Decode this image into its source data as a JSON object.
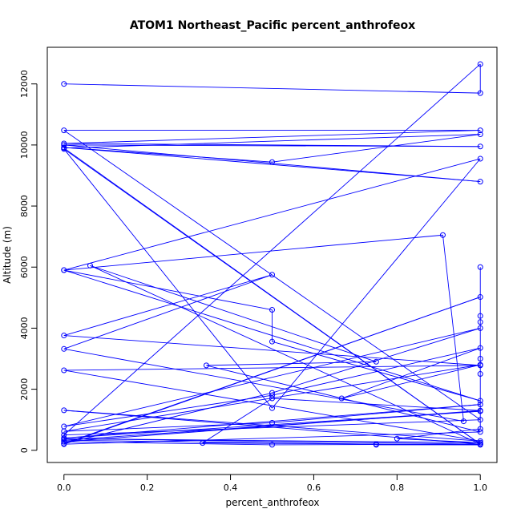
{
  "chart_data": {
    "type": "line",
    "title": "ATOM1 Northeast_Pacific percent_anthrofeox",
    "xlabel": "percent_anthrofeox",
    "ylabel": "Altitude (m)",
    "xlim": [
      -0.04,
      1.04
    ],
    "ylim": [
      -400,
      13200
    ],
    "xticks": [
      0.0,
      0.2,
      0.4,
      0.6,
      0.8,
      1.0
    ],
    "xtick_labels": [
      "0.0",
      "0.2",
      "0.4",
      "0.6",
      "0.8",
      "1.0"
    ],
    "yticks": [
      0,
      2000,
      4000,
      6000,
      8000,
      10000,
      12000
    ],
    "ytick_labels": [
      "0",
      "2000",
      "4000",
      "6000",
      "8000",
      "10000",
      "12000"
    ],
    "grid": false,
    "legend": "none",
    "series": [
      {
        "color": "#0000ff",
        "marker": "open-circle",
        "points": [
          [
            0.0,
            12000
          ],
          [
            1.0,
            11700
          ],
          [
            1.0,
            12650
          ],
          [
            0.0,
            500
          ],
          [
            1.0,
            1000
          ],
          [
            0.0,
            10480
          ],
          [
            1.0,
            10480
          ],
          [
            0.0,
            10050
          ],
          [
            1.0,
            9950
          ],
          [
            0.0,
            10000
          ],
          [
            1.0,
            8800
          ],
          [
            0.0,
            9920
          ],
          [
            0.5,
            9440
          ],
          [
            1.0,
            10350
          ],
          [
            0.0,
            9900
          ],
          [
            1.0,
            200
          ],
          [
            0.0,
            9870
          ],
          [
            0.5,
            1380
          ],
          [
            1.0,
            9550
          ],
          [
            0.0,
            5900
          ],
          [
            0.5,
            4600
          ],
          [
            0.5,
            3560
          ],
          [
            1.0,
            1620
          ],
          [
            0.0,
            5900
          ],
          [
            0.91,
            7050
          ],
          [
            0.96,
            950
          ],
          [
            0.0,
            3320
          ],
          [
            0.5,
            5750
          ],
          [
            0.0,
            3760
          ],
          [
            1.0,
            2780
          ],
          [
            0.0,
            2620
          ],
          [
            1.0,
            300
          ],
          [
            0.0,
            1310
          ],
          [
            1.0,
            200
          ],
          [
            0.063,
            6050
          ],
          [
            0.75,
            2900
          ],
          [
            0.342,
            2780
          ],
          [
            1.0,
            600
          ],
          [
            0.0,
            200
          ],
          [
            1.0,
            5020
          ],
          [
            0.0,
            220
          ],
          [
            0.5,
            1880
          ],
          [
            1.0,
            4000
          ],
          [
            0.0,
            780
          ],
          [
            0.5,
            1800
          ],
          [
            1.0,
            3350
          ],
          [
            0.667,
            1700
          ],
          [
            1.0,
            2800
          ],
          [
            0.0,
            620
          ],
          [
            0.5,
            900
          ],
          [
            1.0,
            1500
          ],
          [
            0.0,
            400
          ],
          [
            1.0,
            1280
          ],
          [
            0.0,
            330
          ],
          [
            0.75,
            200
          ],
          [
            0.75,
            180
          ],
          [
            1.0,
            180
          ],
          [
            0.333,
            240
          ],
          [
            0.5,
            1700
          ],
          [
            1.0,
            1300
          ],
          [
            0.0,
            280
          ],
          [
            0.5,
            180
          ],
          [
            1.0,
            200
          ],
          [
            0.0,
            380
          ],
          [
            1.0,
            250
          ],
          [
            0.8,
            380
          ],
          [
            1.0,
            700
          ],
          [
            1.0,
            2500
          ],
          [
            1.0,
            3000
          ],
          [
            1.0,
            4200
          ],
          [
            1.0,
            4400
          ],
          [
            1.0,
            6000
          ]
        ]
      }
    ]
  }
}
